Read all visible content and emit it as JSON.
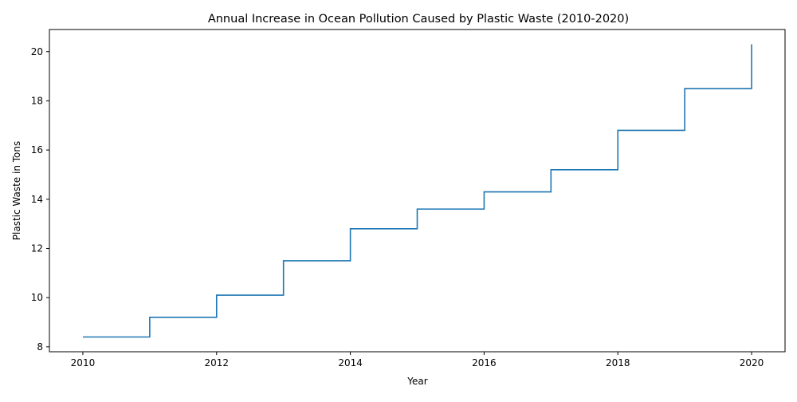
{
  "chart_data": {
    "type": "line",
    "style": "step-post",
    "title": "Annual Increase in Ocean Pollution Caused by Plastic Waste (2010-2020)",
    "xlabel": "Year",
    "ylabel": "Plastic Waste in Tons",
    "x": [
      2010,
      2011,
      2012,
      2013,
      2014,
      2015,
      2016,
      2017,
      2018,
      2019,
      2020
    ],
    "series": [
      {
        "values": [
          8.4,
          9.2,
          10.1,
          11.5,
          12.8,
          13.6,
          14.3,
          15.2,
          16.8,
          18.5,
          20.3
        ]
      }
    ],
    "xlim": [
      2009.5,
      2020.5
    ],
    "ylim": [
      7.8,
      20.9
    ],
    "xticks": [
      "2010",
      "2012",
      "2014",
      "2016",
      "2018",
      "2020"
    ],
    "yticks": [
      "8",
      "10",
      "12",
      "14",
      "16",
      "18",
      "20"
    ],
    "grid": false,
    "line_color": "#1f77b4"
  }
}
